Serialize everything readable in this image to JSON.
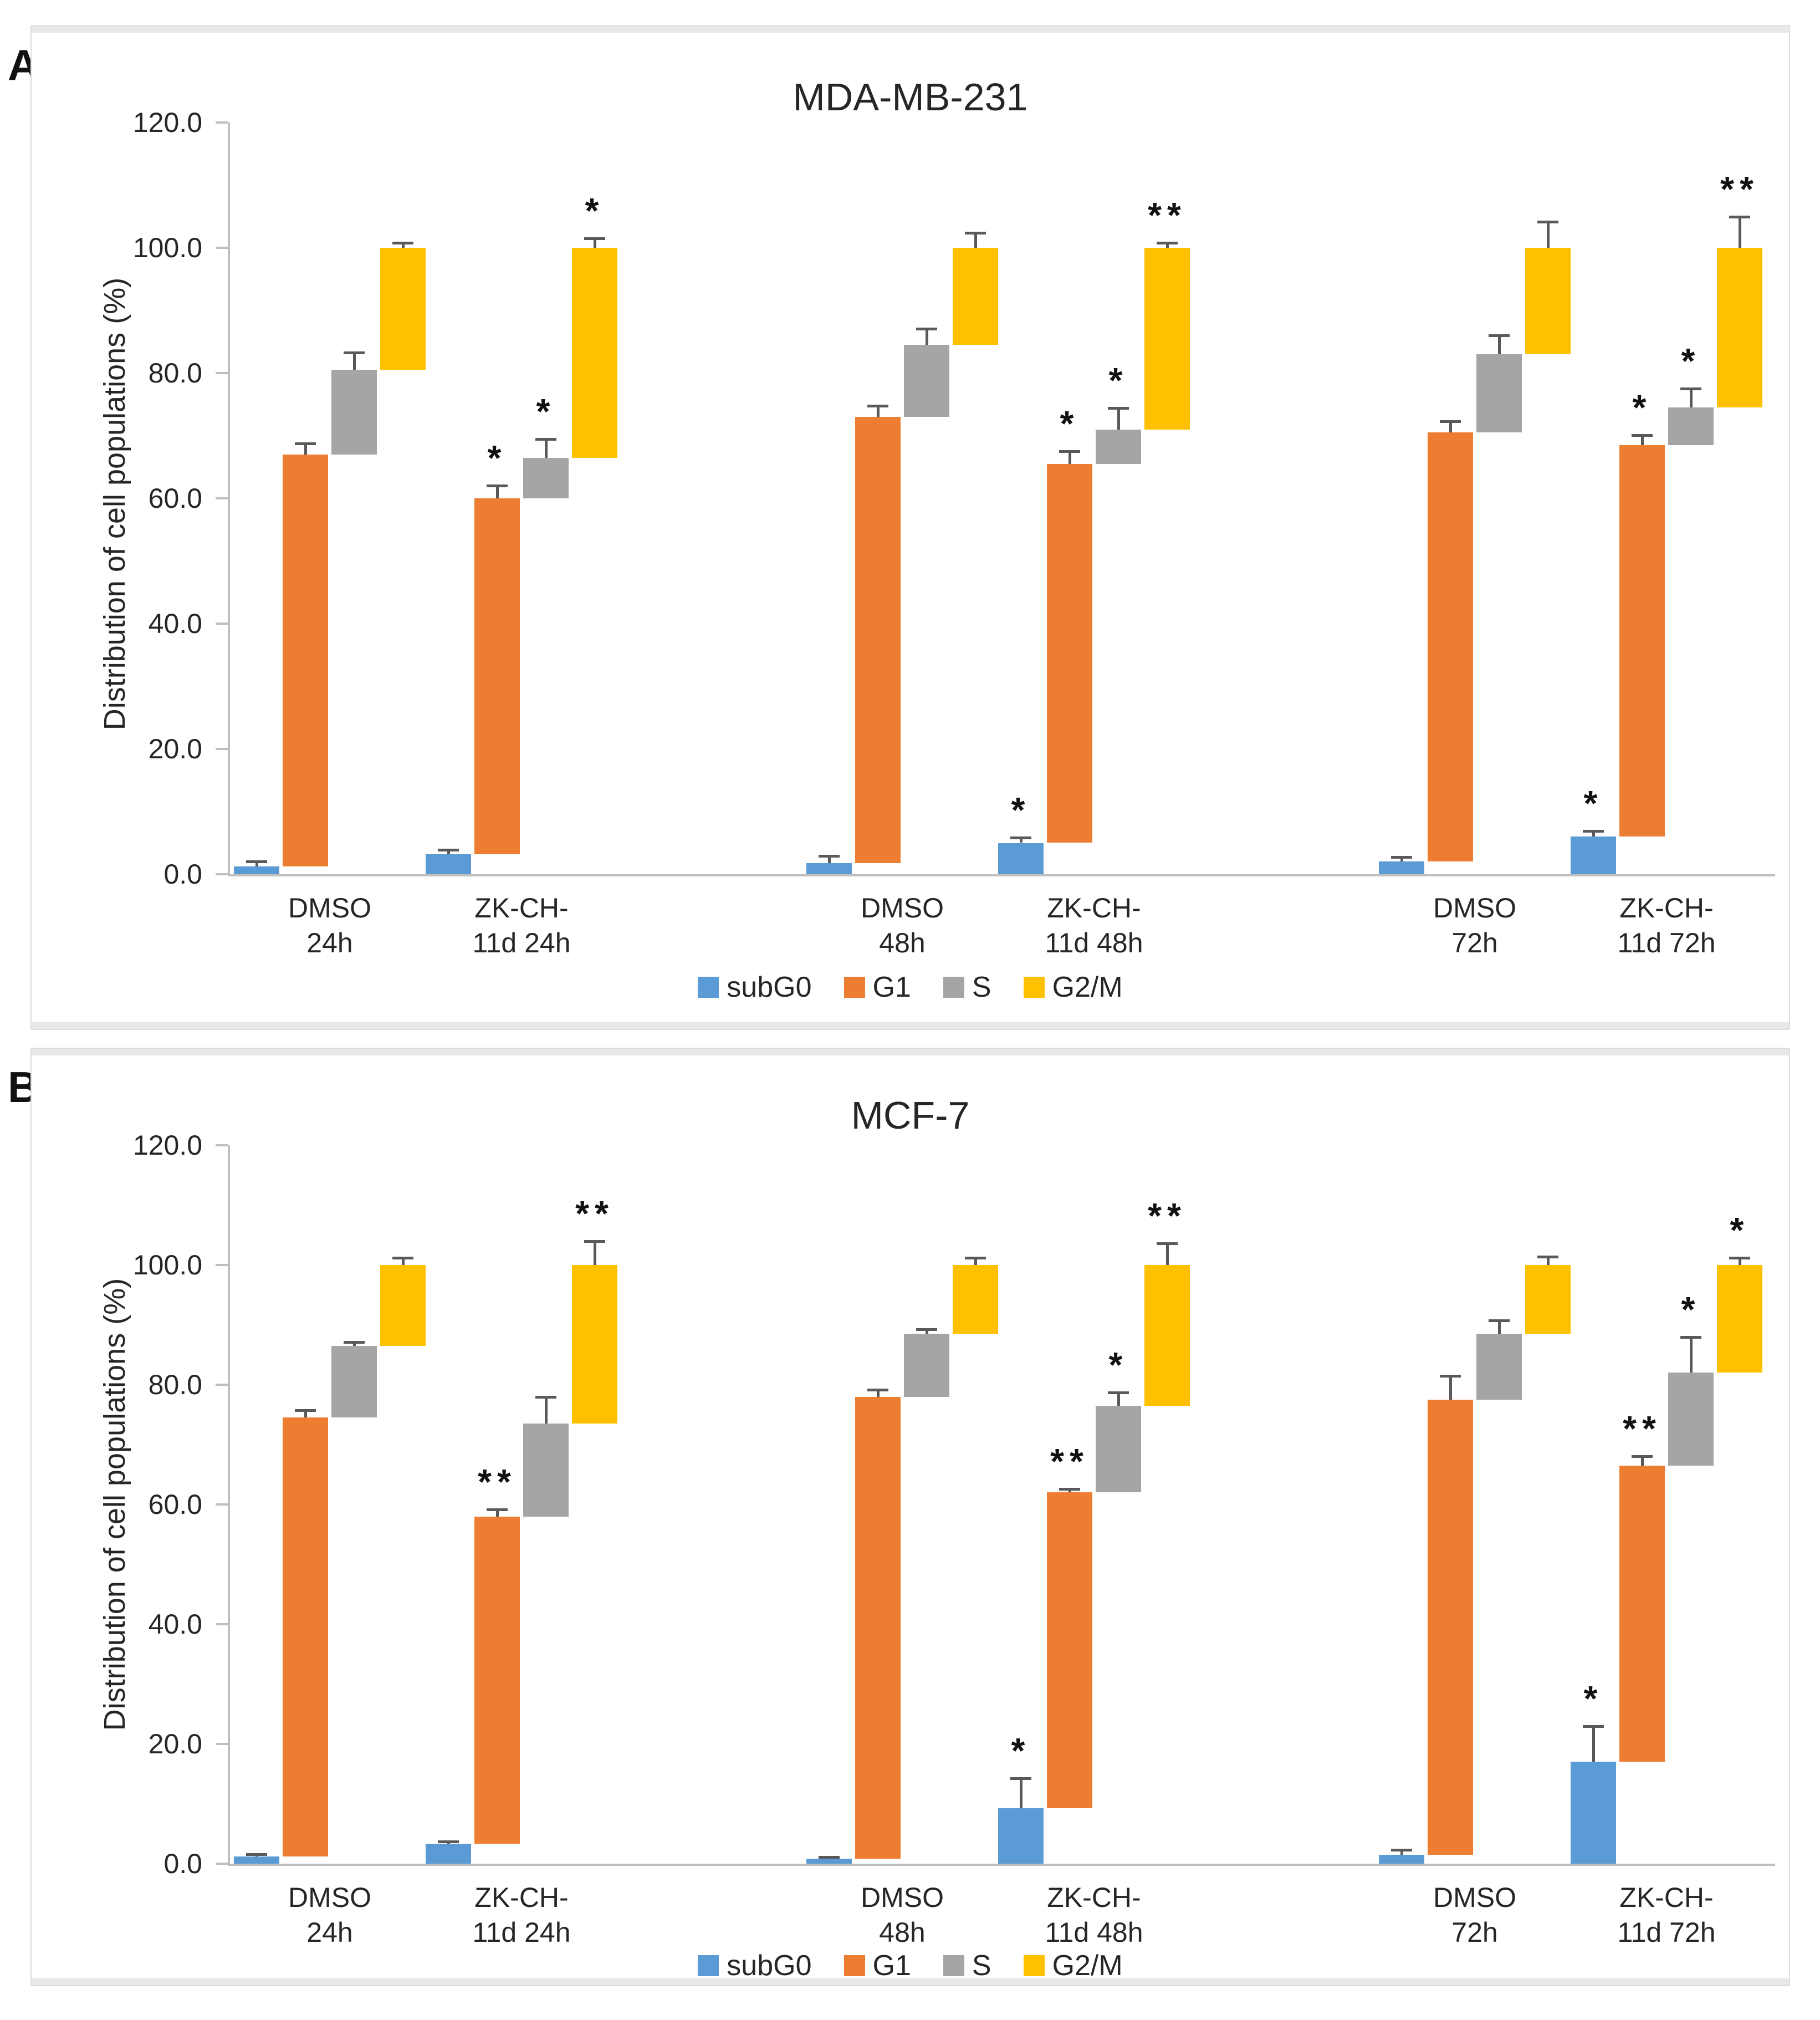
{
  "page": {
    "panel_a_label": "A",
    "panel_b_label": "B"
  },
  "colors": {
    "subG0": "#5B9BD5",
    "G1": "#ED7D31",
    "S": "#A5A5A5",
    "G2/M": "#FFC000",
    "error_bar": "#595959",
    "axis": "#BFBFBF",
    "text": "#262626"
  },
  "legend": [
    {
      "label": "subG0",
      "color": "#5B9BD5"
    },
    {
      "label": "G1",
      "color": "#ED7D31"
    },
    {
      "label": "S",
      "color": "#A5A5A5"
    },
    {
      "label": "G2/M",
      "color": "#FFC000"
    }
  ],
  "chart_data": [
    {
      "type": "bar",
      "variant": "clustered-waterfall-columns-with-error-bars",
      "panel": "A",
      "title": "MDA-MB-231",
      "xlabel": "",
      "ylabel": "Distribution of cell populations (%)",
      "ylim": [
        0,
        120
      ],
      "yticks": [
        "0.0",
        "20.0",
        "40.0",
        "60.0",
        "80.0",
        "100.0",
        "120.0"
      ],
      "grid": false,
      "legend_position": "bottom",
      "series_names": [
        "subG0",
        "G1",
        "S",
        "G2/M"
      ],
      "groups": [
        {
          "label": "DMSO\n24h",
          "segments": [
            {
              "name": "subG0",
              "from": 0,
              "to": 1.2,
              "err": 0.8,
              "sig": ""
            },
            {
              "name": "G1",
              "from": 1.2,
              "to": 67.0,
              "err": 1.8,
              "sig": ""
            },
            {
              "name": "S",
              "from": 67.0,
              "to": 80.5,
              "err": 2.8,
              "sig": ""
            },
            {
              "name": "G2/M",
              "from": 80.5,
              "to": 100.0,
              "err": 0.8,
              "sig": ""
            }
          ]
        },
        {
          "label": "ZK-CH-\n11d 24h",
          "segments": [
            {
              "name": "subG0",
              "from": 0,
              "to": 3.2,
              "err": 0.7,
              "sig": ""
            },
            {
              "name": "G1",
              "from": 3.2,
              "to": 60.0,
              "err": 2.0,
              "sig": "*"
            },
            {
              "name": "S",
              "from": 60.0,
              "to": 66.5,
              "err": 3.0,
              "sig": "*"
            },
            {
              "name": "G2/M",
              "from": 66.5,
              "to": 100.0,
              "err": 1.5,
              "sig": "*"
            }
          ]
        },
        {
          "label": "DMSO\n48h",
          "segments": [
            {
              "name": "subG0",
              "from": 0,
              "to": 1.8,
              "err": 1.1,
              "sig": ""
            },
            {
              "name": "G1",
              "from": 1.8,
              "to": 73.0,
              "err": 1.8,
              "sig": ""
            },
            {
              "name": "S",
              "from": 73.0,
              "to": 84.5,
              "err": 2.6,
              "sig": ""
            },
            {
              "name": "G2/M",
              "from": 84.5,
              "to": 100.0,
              "err": 2.4,
              "sig": ""
            }
          ]
        },
        {
          "label": "ZK-CH-\n11d 48h",
          "segments": [
            {
              "name": "subG0",
              "from": 0,
              "to": 5.0,
              "err": 0.8,
              "sig": "*"
            },
            {
              "name": "G1",
              "from": 5.0,
              "to": 65.5,
              "err": 2.0,
              "sig": "*"
            },
            {
              "name": "S",
              "from": 65.5,
              "to": 71.0,
              "err": 3.4,
              "sig": "*"
            },
            {
              "name": "G2/M",
              "from": 71.0,
              "to": 100.0,
              "err": 0.8,
              "sig": "**"
            }
          ]
        },
        {
          "label": "DMSO\n72h",
          "segments": [
            {
              "name": "subG0",
              "from": 0,
              "to": 2.0,
              "err": 0.7,
              "sig": ""
            },
            {
              "name": "G1",
              "from": 2.0,
              "to": 70.5,
              "err": 1.8,
              "sig": ""
            },
            {
              "name": "S",
              "from": 70.5,
              "to": 83.0,
              "err": 3.0,
              "sig": ""
            },
            {
              "name": "G2/M",
              "from": 83.0,
              "to": 100.0,
              "err": 4.2,
              "sig": ""
            }
          ]
        },
        {
          "label": "ZK-CH-\n11d 72h",
          "segments": [
            {
              "name": "subG0",
              "from": 0,
              "to": 6.0,
              "err": 0.9,
              "sig": "*"
            },
            {
              "name": "G1",
              "from": 6.0,
              "to": 68.5,
              "err": 1.6,
              "sig": "*"
            },
            {
              "name": "S",
              "from": 68.5,
              "to": 74.5,
              "err": 3.0,
              "sig": "*"
            },
            {
              "name": "G2/M",
              "from": 74.5,
              "to": 100.0,
              "err": 5.0,
              "sig": "**"
            }
          ]
        }
      ]
    },
    {
      "type": "bar",
      "variant": "clustered-waterfall-columns-with-error-bars",
      "panel": "B",
      "title": "MCF-7",
      "xlabel": "",
      "ylabel": "Distribution of cell populations (%)",
      "ylim": [
        0,
        120
      ],
      "yticks": [
        "0.0",
        "20.0",
        "40.0",
        "60.0",
        "80.0",
        "100.0",
        "120.0"
      ],
      "grid": false,
      "legend_position": "bottom",
      "series_names": [
        "subG0",
        "G1",
        "S",
        "G2/M"
      ],
      "groups": [
        {
          "label": "DMSO\n24h",
          "segments": [
            {
              "name": "subG0",
              "from": 0,
              "to": 1.2,
              "err": 0.4,
              "sig": ""
            },
            {
              "name": "G1",
              "from": 1.2,
              "to": 74.5,
              "err": 1.2,
              "sig": ""
            },
            {
              "name": "S",
              "from": 74.5,
              "to": 86.5,
              "err": 0.6,
              "sig": ""
            },
            {
              "name": "G2/M",
              "from": 86.5,
              "to": 100.0,
              "err": 1.2,
              "sig": ""
            }
          ]
        },
        {
          "label": "ZK-CH-\n11d 24h",
          "segments": [
            {
              "name": "subG0",
              "from": 0,
              "to": 3.3,
              "err": 0.4,
              "sig": ""
            },
            {
              "name": "G1",
              "from": 3.3,
              "to": 58.0,
              "err": 1.2,
              "sig": "**"
            },
            {
              "name": "S",
              "from": 58.0,
              "to": 73.5,
              "err": 4.5,
              "sig": ""
            },
            {
              "name": "G2/M",
              "from": 73.5,
              "to": 100.0,
              "err": 4.0,
              "sig": "**"
            }
          ]
        },
        {
          "label": "DMSO\n48h",
          "segments": [
            {
              "name": "subG0",
              "from": 0,
              "to": 0.8,
              "err": 0.3,
              "sig": ""
            },
            {
              "name": "G1",
              "from": 0.8,
              "to": 78.0,
              "err": 1.2,
              "sig": ""
            },
            {
              "name": "S",
              "from": 78.0,
              "to": 88.5,
              "err": 0.8,
              "sig": ""
            },
            {
              "name": "G2/M",
              "from": 88.5,
              "to": 100.0,
              "err": 1.2,
              "sig": ""
            }
          ]
        },
        {
          "label": "ZK-CH-\n11d 48h",
          "segments": [
            {
              "name": "subG0",
              "from": 0,
              "to": 9.3,
              "err": 5.0,
              "sig": "*"
            },
            {
              "name": "G1",
              "from": 9.3,
              "to": 62.0,
              "err": 0.6,
              "sig": "**"
            },
            {
              "name": "S",
              "from": 62.0,
              "to": 76.5,
              "err": 2.2,
              "sig": "*"
            },
            {
              "name": "G2/M",
              "from": 76.5,
              "to": 100.0,
              "err": 3.6,
              "sig": "**"
            }
          ]
        },
        {
          "label": "DMSO\n72h",
          "segments": [
            {
              "name": "subG0",
              "from": 0,
              "to": 1.5,
              "err": 0.8,
              "sig": ""
            },
            {
              "name": "G1",
              "from": 1.5,
              "to": 77.5,
              "err": 4.0,
              "sig": ""
            },
            {
              "name": "S",
              "from": 77.5,
              "to": 88.5,
              "err": 2.2,
              "sig": ""
            },
            {
              "name": "G2/M",
              "from": 88.5,
              "to": 100.0,
              "err": 1.4,
              "sig": ""
            }
          ]
        },
        {
          "label": "ZK-CH-\n11d 72h",
          "segments": [
            {
              "name": "subG0",
              "from": 0,
              "to": 17.0,
              "err": 6.0,
              "sig": "*"
            },
            {
              "name": "G1",
              "from": 17.0,
              "to": 66.5,
              "err": 1.6,
              "sig": "**"
            },
            {
              "name": "S",
              "from": 66.5,
              "to": 82.0,
              "err": 6.0,
              "sig": "*"
            },
            {
              "name": "G2/M",
              "from": 82.0,
              "to": 100.0,
              "err": 1.2,
              "sig": "*"
            }
          ]
        }
      ]
    }
  ]
}
